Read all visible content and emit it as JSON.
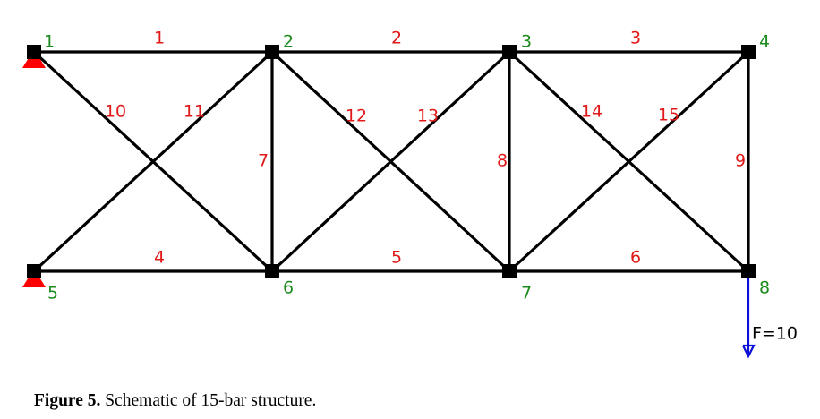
{
  "figure": {
    "caption_label": "Figure 5.",
    "caption_text": " Schematic of 15-bar structure."
  },
  "colors": {
    "node_label": "#1c8a1c",
    "bar_label": "#e01818",
    "support": "#ff0000",
    "load": "#0a10d8",
    "bar": "#000000"
  },
  "nodes": [
    {
      "id": 1,
      "label": "1"
    },
    {
      "id": 2,
      "label": "2"
    },
    {
      "id": 3,
      "label": "3"
    },
    {
      "id": 4,
      "label": "4"
    },
    {
      "id": 5,
      "label": "5"
    },
    {
      "id": 6,
      "label": "6"
    },
    {
      "id": 7,
      "label": "7"
    },
    {
      "id": 8,
      "label": "8"
    }
  ],
  "bars": [
    {
      "id": 1,
      "label": "1",
      "from": 1,
      "to": 2
    },
    {
      "id": 2,
      "label": "2",
      "from": 2,
      "to": 3
    },
    {
      "id": 3,
      "label": "3",
      "from": 3,
      "to": 4
    },
    {
      "id": 4,
      "label": "4",
      "from": 5,
      "to": 6
    },
    {
      "id": 5,
      "label": "5",
      "from": 6,
      "to": 7
    },
    {
      "id": 6,
      "label": "6",
      "from": 7,
      "to": 8
    },
    {
      "id": 7,
      "label": "7",
      "from": 2,
      "to": 6
    },
    {
      "id": 8,
      "label": "8",
      "from": 3,
      "to": 7
    },
    {
      "id": 9,
      "label": "9",
      "from": 4,
      "to": 8
    },
    {
      "id": 10,
      "label": "10",
      "from": 1,
      "to": 6
    },
    {
      "id": 11,
      "label": "11",
      "from": 5,
      "to": 2
    },
    {
      "id": 12,
      "label": "12",
      "from": 2,
      "to": 7
    },
    {
      "id": 13,
      "label": "13",
      "from": 6,
      "to": 3
    },
    {
      "id": 14,
      "label": "14",
      "from": 3,
      "to": 8
    },
    {
      "id": 15,
      "label": "15",
      "from": 7,
      "to": 4
    }
  ],
  "supports": [
    {
      "node": 1
    },
    {
      "node": 5
    }
  ],
  "load": {
    "node": 8,
    "label": "F=10"
  }
}
